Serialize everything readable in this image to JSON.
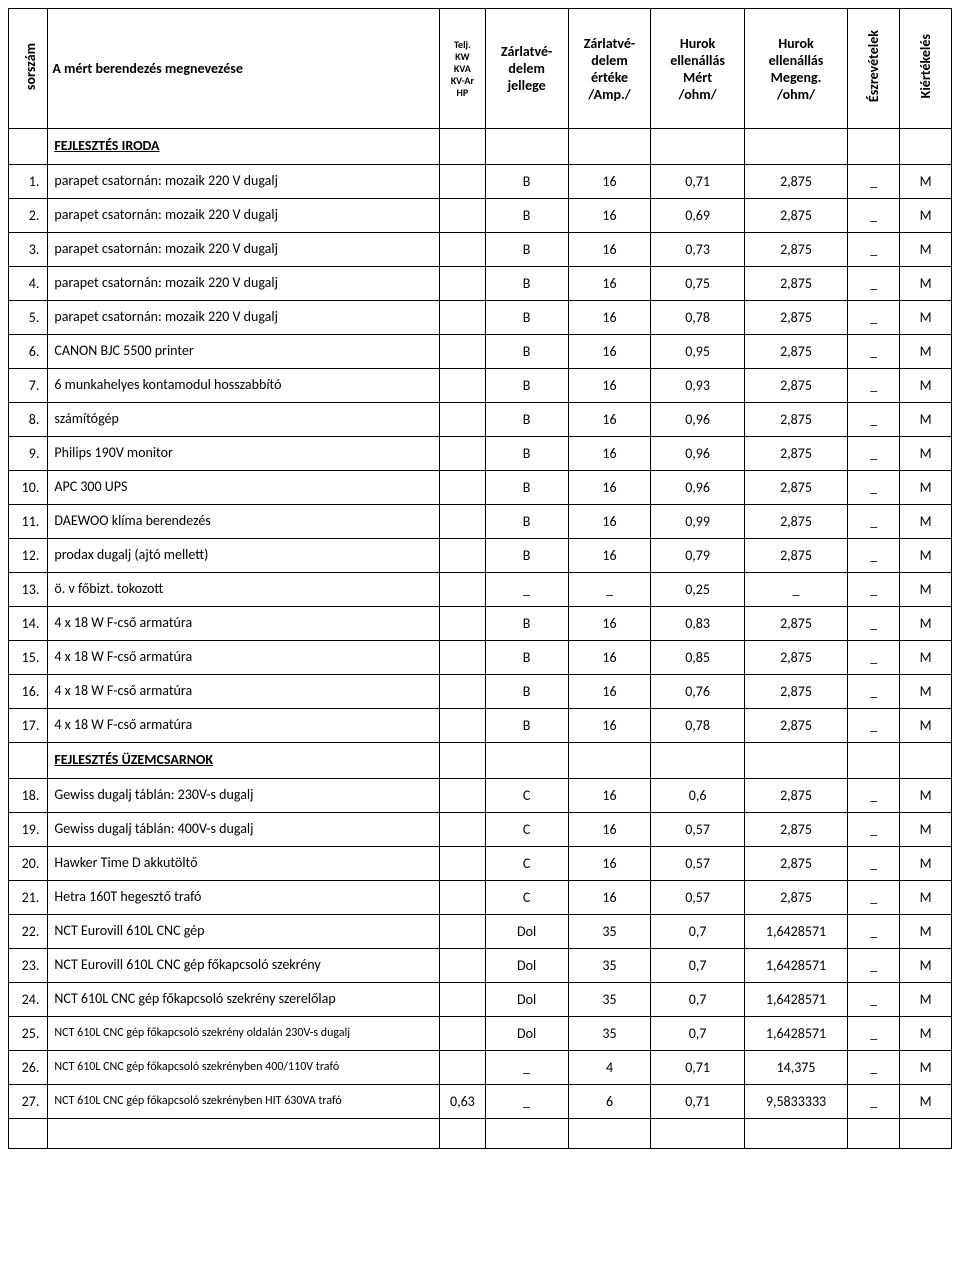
{
  "headers": {
    "sorszam": "sorszám",
    "megnevezes": "A mért berendezés megnevezése",
    "telj_lines": [
      "Telj.",
      "KW",
      "KVA",
      "KV-Ar",
      "HP"
    ],
    "jellege": "Zárlatvé-\ndelem\njellege",
    "erteke": "Zárlatvé-\ndelem\nértéke\n/Amp./",
    "mert": "Hurok\nellenállás\nMért\n/ohm/",
    "megeng": "Hurok\nellenállás\nMegeng.\n/ohm/",
    "eszrevetelek": "Észrevételek",
    "kiertekeles": "Kiértékelés"
  },
  "rows": [
    {
      "type": "section",
      "title": "FEJLESZTÉS IRODA"
    },
    {
      "type": "data",
      "num": "1.",
      "name": "parapet csatornán: mozaik 220 V dugalj",
      "telj": "",
      "jell": "B",
      "ert": "16",
      "mert": "0,71",
      "meg": "2,875",
      "eszr": "_",
      "kiert": "M"
    },
    {
      "type": "data",
      "num": "2.",
      "name": "parapet csatornán: mozaik 220 V dugalj",
      "telj": "",
      "jell": "B",
      "ert": "16",
      "mert": "0,69",
      "meg": "2,875",
      "eszr": "_",
      "kiert": "M"
    },
    {
      "type": "data",
      "num": "3.",
      "name": "parapet csatornán: mozaik 220 V dugalj",
      "telj": "",
      "jell": "B",
      "ert": "16",
      "mert": "0,73",
      "meg": "2,875",
      "eszr": "_",
      "kiert": "M"
    },
    {
      "type": "data",
      "num": "4.",
      "name": "parapet csatornán: mozaik 220 V dugalj",
      "telj": "",
      "jell": "B",
      "ert": "16",
      "mert": "0,75",
      "meg": "2,875",
      "eszr": "_",
      "kiert": "M"
    },
    {
      "type": "data",
      "num": "5.",
      "name": "parapet csatornán: mozaik 220 V dugalj",
      "telj": "",
      "jell": "B",
      "ert": "16",
      "mert": "0,78",
      "meg": "2,875",
      "eszr": "_",
      "kiert": "M"
    },
    {
      "type": "data",
      "num": "6.",
      "name": "CANON BJC 5500 printer",
      "telj": "",
      "jell": "B",
      "ert": "16",
      "mert": "0,95",
      "meg": "2,875",
      "eszr": "_",
      "kiert": "M"
    },
    {
      "type": "data",
      "num": "7.",
      "name": "6 munkahelyes kontamodul hosszabbító",
      "telj": "",
      "jell": "B",
      "ert": "16",
      "mert": "0,93",
      "meg": "2,875",
      "eszr": "_",
      "kiert": "M"
    },
    {
      "type": "data",
      "num": "8.",
      "name": "számítógép",
      "telj": "",
      "jell": "B",
      "ert": "16",
      "mert": "0,96",
      "meg": "2,875",
      "eszr": "_",
      "kiert": "M"
    },
    {
      "type": "data",
      "num": "9.",
      "name": "Philips 190V monitor",
      "telj": "",
      "jell": "B",
      "ert": "16",
      "mert": "0,96",
      "meg": "2,875",
      "eszr": "_",
      "kiert": "M"
    },
    {
      "type": "data",
      "num": "10.",
      "name": "APC 300 UPS",
      "telj": "",
      "jell": "B",
      "ert": "16",
      "mert": "0,96",
      "meg": "2,875",
      "eszr": "_",
      "kiert": "M"
    },
    {
      "type": "data",
      "num": "11.",
      "name": "DAEWOO klíma berendezés",
      "telj": "",
      "jell": "B",
      "ert": "16",
      "mert": "0,99",
      "meg": "2,875",
      "eszr": "_",
      "kiert": "M"
    },
    {
      "type": "data",
      "num": "12.",
      "name": "prodax dugalj (ajtó mellett)",
      "telj": "",
      "jell": "B",
      "ert": "16",
      "mert": "0,79",
      "meg": "2,875",
      "eszr": "_",
      "kiert": "M"
    },
    {
      "type": "data",
      "num": "13.",
      "name": "ö. v főbizt. tokozott",
      "telj": "",
      "jell": "_",
      "ert": "_",
      "mert": "0,25",
      "meg": "_",
      "eszr": "_",
      "kiert": "M"
    },
    {
      "type": "data",
      "num": "14.",
      "name": "4 x 18 W F-cső armatúra",
      "telj": "",
      "jell": "B",
      "ert": "16",
      "mert": "0,83",
      "meg": "2,875",
      "eszr": "_",
      "kiert": "M"
    },
    {
      "type": "data",
      "num": "15.",
      "name": "4 x 18 W F-cső armatúra",
      "telj": "",
      "jell": "B",
      "ert": "16",
      "mert": "0,85",
      "meg": "2,875",
      "eszr": "_",
      "kiert": "M"
    },
    {
      "type": "data",
      "num": "16.",
      "name": "4 x 18 W F-cső armatúra",
      "telj": "",
      "jell": "B",
      "ert": "16",
      "mert": "0,76",
      "meg": "2,875",
      "eszr": "_",
      "kiert": "M"
    },
    {
      "type": "data",
      "num": "17.",
      "name": "4 x 18 W F-cső armatúra",
      "telj": "",
      "jell": "B",
      "ert": "16",
      "mert": "0,78",
      "meg": "2,875",
      "eszr": "_",
      "kiert": "M"
    },
    {
      "type": "section",
      "title": "FEJLESZTÉS ÜZEMCSARNOK"
    },
    {
      "type": "data",
      "num": "18.",
      "name": "Gewiss dugalj táblán: 230V-s dugalj",
      "telj": "",
      "jell": "C",
      "ert": "16",
      "mert": "0,6",
      "meg": "2,875",
      "eszr": "_",
      "kiert": "M"
    },
    {
      "type": "data",
      "num": "19.",
      "name": "Gewiss dugalj táblán: 400V-s dugalj",
      "telj": "",
      "jell": "C",
      "ert": "16",
      "mert": "0,57",
      "meg": "2,875",
      "eszr": "_",
      "kiert": "M"
    },
    {
      "type": "data",
      "num": "20.",
      "name": "Hawker Time D akkutöltő",
      "telj": "",
      "jell": "C",
      "ert": "16",
      "mert": "0,57",
      "meg": "2,875",
      "eszr": "_",
      "kiert": "M"
    },
    {
      "type": "data",
      "num": "21.",
      "name": "Hetra 160T hegesztő trafó",
      "telj": "",
      "jell": "C",
      "ert": "16",
      "mert": "0,57",
      "meg": "2,875",
      "eszr": "_",
      "kiert": "M"
    },
    {
      "type": "data",
      "num": "22.",
      "name": "NCT Eurovill 610L CNC gép",
      "telj": "",
      "jell": "Dol",
      "ert": "35",
      "mert": "0,7",
      "meg": "1,6428571",
      "eszr": "_",
      "kiert": "M"
    },
    {
      "type": "data",
      "num": "23.",
      "name": "NCT Eurovill 610L CNC gép főkapcsoló szekrény",
      "telj": "",
      "jell": "Dol",
      "ert": "35",
      "mert": "0,7",
      "meg": "1,6428571",
      "eszr": "_",
      "kiert": "M"
    },
    {
      "type": "data",
      "num": "24.",
      "name": "NCT 610L CNC gép főkapcsoló szekrény szerelőlap",
      "telj": "",
      "jell": "Dol",
      "ert": "35",
      "mert": "0,7",
      "meg": "1,6428571",
      "eszr": "_",
      "kiert": "M"
    },
    {
      "type": "data",
      "small": true,
      "num": "25.",
      "name": "NCT 610L CNC gép főkapcsoló szekrény oldalán 230V-s dugalj",
      "telj": "",
      "jell": "Dol",
      "ert": "35",
      "mert": "0,7",
      "meg": "1,6428571",
      "eszr": "_",
      "kiert": "M"
    },
    {
      "type": "data",
      "small": true,
      "num": "26.",
      "name": "NCT 610L CNC gép főkapcsoló szekrényben 400/110V trafó",
      "telj": "",
      "jell": "_",
      "ert": "4",
      "mert": "0,71",
      "meg": "14,375",
      "eszr": "_",
      "kiert": "M"
    },
    {
      "type": "data",
      "small": true,
      "num": "27.",
      "name": "NCT 610L CNC gép főkapcsoló szekrényben HIT 630VA trafó",
      "telj": "0,63",
      "jell": "_",
      "ert": "6",
      "mert": "0,71",
      "meg": "9,5833333",
      "eszr": "_",
      "kiert": "M"
    },
    {
      "type": "blank"
    }
  ]
}
